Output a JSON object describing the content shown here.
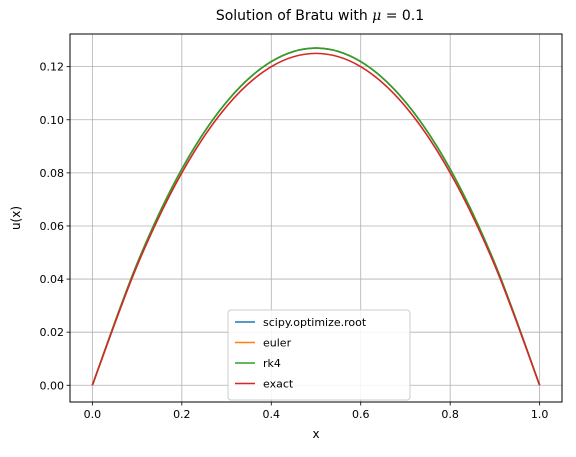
{
  "chart_data": {
    "type": "line",
    "title_prefix": "Solution of Bratu with ",
    "title_symbol": "μ",
    "title_suffix": " = 0.1",
    "xlabel": "x",
    "ylabel": "u(x)",
    "xlim": [
      -0.05,
      1.05
    ],
    "ylim": [
      -0.0063,
      0.1323
    ],
    "xticks": [
      0.0,
      0.2,
      0.4,
      0.6,
      0.8,
      1.0
    ],
    "xtick_labels": [
      "0.0",
      "0.2",
      "0.4",
      "0.6",
      "0.8",
      "1.0"
    ],
    "yticks": [
      0.0,
      0.02,
      0.04,
      0.06,
      0.08,
      0.1,
      0.12
    ],
    "ytick_labels": [
      "0.00",
      "0.02",
      "0.04",
      "0.06",
      "0.08",
      "0.10",
      "0.12"
    ],
    "grid": true,
    "legend_position": "lower center",
    "x": [
      0.0,
      0.1,
      0.2,
      0.3,
      0.4,
      0.5,
      0.6,
      0.7,
      0.8,
      0.9,
      1.0
    ],
    "series": [
      {
        "name": "scipy.optimize.root",
        "color": "#1f77b4",
        "values": [
          0.0,
          0.0458,
          0.0814,
          0.1067,
          0.1219,
          0.127,
          0.1219,
          0.1067,
          0.0814,
          0.0458,
          0.0
        ]
      },
      {
        "name": "euler",
        "color": "#ff7f0e",
        "values": [
          0.0,
          0.0458,
          0.0814,
          0.1067,
          0.1219,
          0.127,
          0.1219,
          0.1067,
          0.0814,
          0.0458,
          0.0
        ]
      },
      {
        "name": "rk4",
        "color": "#2ca02c",
        "values": [
          0.0,
          0.0458,
          0.0814,
          0.1067,
          0.1219,
          0.127,
          0.1219,
          0.1067,
          0.0814,
          0.0458,
          0.0
        ]
      },
      {
        "name": "exact",
        "color": "#d62728",
        "values": [
          0.0,
          0.045,
          0.08,
          0.105,
          0.12,
          0.125,
          0.12,
          0.105,
          0.08,
          0.045,
          0.0
        ]
      }
    ]
  }
}
